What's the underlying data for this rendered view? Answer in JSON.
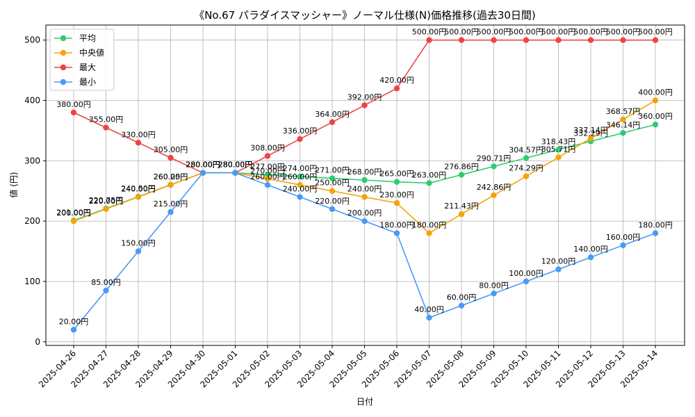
{
  "chart_data": {
    "type": "line",
    "title": "《No.67 パラダイスマッシャー》ノーマル仕様(N)価格推移(過去30日間)",
    "xlabel": "日付",
    "ylabel": "値 (円)",
    "ylim": [
      0,
      500
    ],
    "yticks": [
      0,
      100,
      200,
      300,
      400,
      500
    ],
    "grid": true,
    "legend_position": "top-left",
    "label_suffix": "円",
    "categories": [
      "2025-04-26",
      "2025-04-27",
      "2025-04-28",
      "2025-04-29",
      "2025-04-30",
      "2025-05-01",
      "2025-05-02",
      "2025-05-03",
      "2025-05-04",
      "2025-05-05",
      "2025-05-06",
      "2025-05-07",
      "2025-05-08",
      "2025-05-09",
      "2025-05-10",
      "2025-05-11",
      "2025-05-12",
      "2025-05-13",
      "2025-05-14"
    ],
    "series": [
      {
        "name": "平均",
        "color": "#2ecc71",
        "values": [
          201.0,
          220.75,
          240.5,
          260.25,
          280.0,
          280.0,
          277.0,
          274.0,
          271.0,
          268.0,
          265.0,
          263.0,
          276.86,
          290.71,
          304.57,
          318.43,
          332.29,
          346.14,
          360.0
        ]
      },
      {
        "name": "中央値",
        "color": "#f5a30a",
        "values": [
          200.0,
          220.0,
          240.0,
          260.0,
          280.0,
          280.0,
          270.0,
          260.0,
          250.0,
          240.0,
          230.0,
          180.0,
          211.43,
          242.86,
          274.29,
          305.71,
          337.14,
          368.57,
          400.0
        ]
      },
      {
        "name": "最大",
        "color": "#ef4444",
        "values": [
          380.0,
          355.0,
          330.0,
          305.0,
          280.0,
          280.0,
          308.0,
          336.0,
          364.0,
          392.0,
          420.0,
          500.0,
          500.0,
          500.0,
          500.0,
          500.0,
          500.0,
          500.0,
          500.0
        ]
      },
      {
        "name": "最小",
        "color": "#4a9af5",
        "values": [
          20.0,
          85.0,
          150.0,
          215.0,
          280.0,
          280.0,
          260.0,
          240.0,
          220.0,
          200.0,
          180.0,
          40.0,
          60.0,
          80.0,
          100.0,
          120.0,
          140.0,
          160.0,
          180.0
        ]
      }
    ]
  }
}
